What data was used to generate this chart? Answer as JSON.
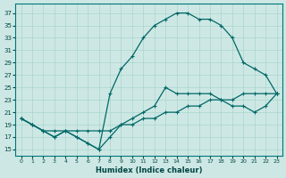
{
  "xlabel": "Humidex (Indice chaleur)",
  "background_color": "#cde8e4",
  "grid_color": "#aad4ce",
  "line_color": "#006868",
  "xlim": [
    -0.5,
    23.5
  ],
  "ylim": [
    14.0,
    38.5
  ],
  "xticks": [
    0,
    1,
    2,
    3,
    4,
    5,
    6,
    7,
    8,
    9,
    10,
    11,
    12,
    13,
    14,
    15,
    16,
    17,
    18,
    19,
    20,
    21,
    22,
    23
  ],
  "yticks": [
    15,
    17,
    19,
    21,
    23,
    25,
    27,
    29,
    31,
    33,
    35,
    37
  ],
  "series_jagged_x": [
    0,
    1,
    2,
    3,
    4,
    5,
    6,
    7,
    8,
    9,
    10,
    11,
    12,
    13,
    14,
    15,
    16,
    17,
    18,
    19,
    20,
    21,
    22,
    23
  ],
  "series_jagged_y": [
    20,
    19,
    18,
    17,
    18,
    17,
    16,
    15,
    17,
    19,
    20,
    21,
    22,
    25,
    24,
    24,
    24,
    24,
    23,
    22,
    22,
    21,
    22,
    24
  ],
  "series_top_x": [
    0,
    1,
    2,
    3,
    4,
    5,
    6,
    7,
    8,
    9,
    10,
    11,
    12,
    13,
    14,
    15,
    16,
    17,
    18,
    19,
    20,
    21,
    22,
    23
  ],
  "series_top_y": [
    20,
    19,
    18,
    17,
    18,
    17,
    16,
    15,
    24,
    28,
    30,
    33,
    35,
    36,
    37,
    37,
    36,
    36,
    35,
    33,
    29,
    28,
    27,
    24
  ],
  "series_diag_x": [
    0,
    1,
    2,
    3,
    4,
    5,
    6,
    7,
    8,
    9,
    10,
    11,
    12,
    13,
    14,
    15,
    16,
    17,
    18,
    19,
    20,
    21,
    22,
    23
  ],
  "series_diag_y": [
    20,
    19,
    18,
    18,
    18,
    18,
    18,
    18,
    18,
    19,
    19,
    20,
    20,
    21,
    21,
    22,
    22,
    23,
    23,
    23,
    24,
    24,
    24,
    24
  ]
}
